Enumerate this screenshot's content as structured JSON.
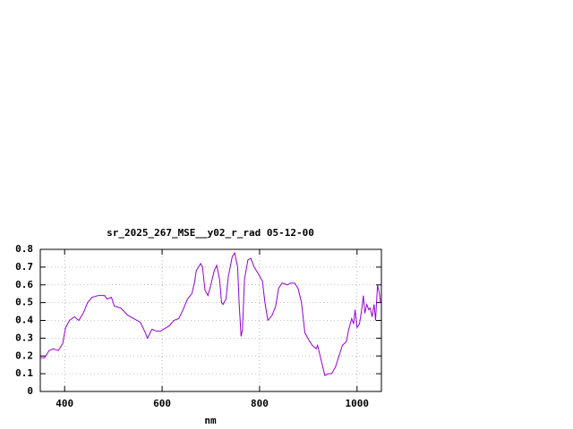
{
  "chart_data": {
    "type": "line",
    "title": "sr_2025_267_MSE__y02_r_rad 05-12-00",
    "x_label": "nm",
    "x": [
      350,
      359,
      368,
      377,
      387,
      396,
      402,
      410,
      420,
      429,
      438,
      447,
      456,
      469,
      482,
      487,
      496,
      502,
      515,
      529,
      542,
      555,
      564,
      570,
      579,
      588,
      597,
      615,
      624,
      634,
      643,
      652,
      661,
      667,
      670,
      679,
      683,
      688,
      694,
      700,
      707,
      712,
      718,
      722,
      725,
      731,
      736,
      744,
      749,
      755,
      758,
      762,
      765,
      769,
      776,
      782,
      789,
      798,
      806,
      811,
      817,
      826,
      833,
      839,
      846,
      857,
      864,
      872,
      879,
      886,
      893,
      901,
      908,
      916,
      919,
      926,
      934,
      941,
      948,
      956,
      963,
      970,
      978,
      983,
      989,
      993,
      996,
      1000,
      1005,
      1009,
      1013,
      1016,
      1020,
      1024,
      1027,
      1031,
      1035,
      1038,
      1042,
      1046,
      1048
    ],
    "values": [
      0.19,
      0.19,
      0.23,
      0.24,
      0.23,
      0.27,
      0.36,
      0.4,
      0.42,
      0.4,
      0.44,
      0.5,
      0.53,
      0.54,
      0.54,
      0.52,
      0.53,
      0.48,
      0.47,
      0.43,
      0.41,
      0.39,
      0.34,
      0.3,
      0.35,
      0.34,
      0.34,
      0.37,
      0.4,
      0.41,
      0.46,
      0.52,
      0.55,
      0.62,
      0.68,
      0.72,
      0.7,
      0.57,
      0.54,
      0.6,
      0.68,
      0.71,
      0.63,
      0.5,
      0.49,
      0.52,
      0.65,
      0.76,
      0.78,
      0.7,
      0.5,
      0.31,
      0.35,
      0.63,
      0.74,
      0.75,
      0.7,
      0.66,
      0.62,
      0.5,
      0.4,
      0.43,
      0.48,
      0.58,
      0.61,
      0.6,
      0.61,
      0.61,
      0.58,
      0.5,
      0.33,
      0.29,
      0.26,
      0.24,
      0.26,
      0.18,
      0.09,
      0.1,
      0.1,
      0.14,
      0.2,
      0.26,
      0.28,
      0.35,
      0.41,
      0.38,
      0.46,
      0.36,
      0.38,
      0.45,
      0.54,
      0.44,
      0.49,
      0.46,
      0.47,
      0.42,
      0.49,
      0.4,
      0.6,
      0.55,
      0.5
    ],
    "color": "#9400d3",
    "xlim": [
      350,
      1050
    ],
    "xticks": [
      400,
      600,
      800,
      1000
    ],
    "ylim": [
      0,
      0.8
    ],
    "yticks": [
      0,
      0.1,
      0.2,
      0.3,
      0.4,
      0.5,
      0.6,
      0.7,
      0.8
    ],
    "grid": true
  }
}
